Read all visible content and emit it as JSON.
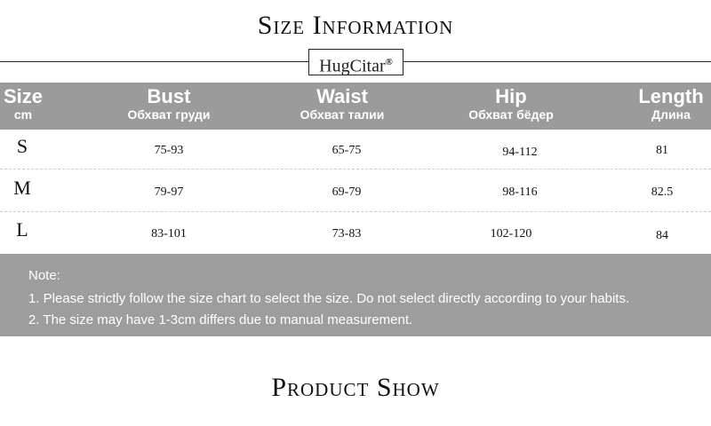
{
  "title": "Size Information",
  "brand": "HugCitar",
  "brand_mark": "®",
  "headers": [
    {
      "main": "Size",
      "sub": "cm"
    },
    {
      "main": "Bust",
      "sub": "Обхват груди"
    },
    {
      "main": "Waist",
      "sub": "Обхват талии"
    },
    {
      "main": "Hip",
      "sub": "Обхват бёдер"
    },
    {
      "main": "Length",
      "sub": "Длина"
    }
  ],
  "rows": [
    {
      "size": "S",
      "bust": "75-93",
      "waist": "65-75",
      "hip": "94-112",
      "length": "81"
    },
    {
      "size": "M",
      "bust": "79-97",
      "waist": "69-79",
      "hip": "98-116",
      "length": "82.5"
    },
    {
      "size": "L",
      "bust": "83-101",
      "waist": "73-83",
      "hip": "102-120",
      "length": "84"
    }
  ],
  "note": {
    "label": "Note:",
    "lines": [
      "1. Please strictly follow the size chart to select the size. Do not select directly according to your habits.",
      "2. The size may have 1-3cm differs due to manual measurement."
    ]
  },
  "section_title": "Product Show",
  "colors": {
    "band": "#9b9b9b",
    "text": "#111111"
  }
}
